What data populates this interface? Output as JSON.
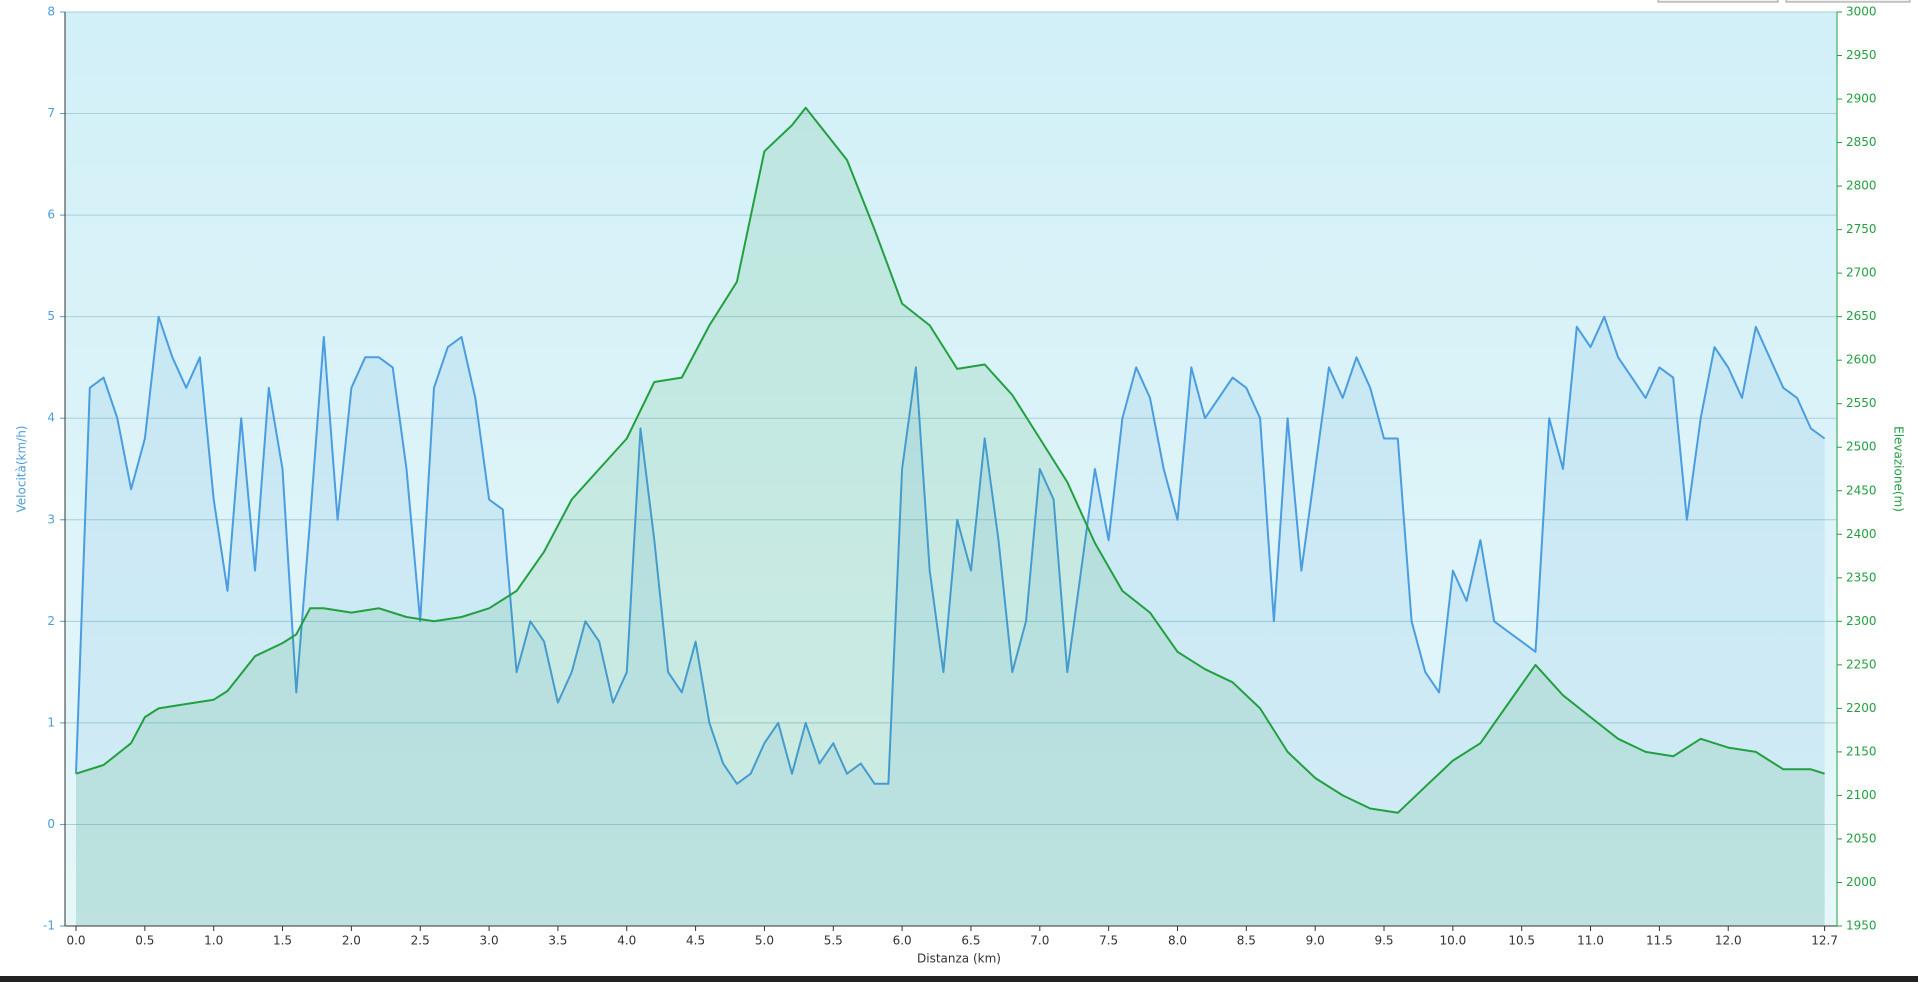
{
  "chart_data": {
    "type": "line",
    "xlabel": "Distanza  (km)",
    "ylabel": "Velocità(km/h)",
    "y2label": "Elevazione(m)",
    "xlim": [
      -0.08,
      12.79
    ],
    "xticks": [
      {
        "value": 0,
        "label": "0.0"
      },
      0.5,
      {
        "value": 1,
        "label": "1.0"
      },
      1.5,
      {
        "value": 2,
        "label": "2.0"
      },
      2.5,
      {
        "value": 3,
        "label": "3.0"
      },
      3.5,
      {
        "value": 4,
        "label": "4.0"
      },
      4.5,
      {
        "value": 5,
        "label": "5.0"
      },
      5.5,
      {
        "value": 6,
        "label": "6.0"
      },
      6.5,
      {
        "value": 7,
        "label": "7.0"
      },
      7.5,
      {
        "value": 8,
        "label": "8.0"
      },
      8.5,
      {
        "value": 9,
        "label": "9.0"
      },
      9.5,
      {
        "value": 10,
        "label": "10.0"
      },
      10.5,
      {
        "value": 11,
        "label": "11.0"
      },
      11.5,
      {
        "value": 12,
        "label": "12.0"
      },
      12.7
    ],
    "ylim": [
      -1,
      8
    ],
    "yticks": [
      -1,
      0,
      1,
      2,
      3,
      4,
      5,
      6,
      7,
      8
    ],
    "y2lim": [
      1950,
      3000
    ],
    "y2ticks": [
      1950,
      2000,
      2050,
      2100,
      2150,
      2200,
      2250,
      2300,
      2350,
      2400,
      2450,
      2500,
      2550,
      2600,
      2650,
      2700,
      2750,
      2800,
      2850,
      2900,
      2950,
      3000
    ],
    "grid": true,
    "series": [
      {
        "name": "Velocità",
        "color": "#4a9de0",
        "axis": "y",
        "x": [
          0.0,
          0.1,
          0.2,
          0.3,
          0.4,
          0.5,
          0.6,
          0.7,
          0.8,
          0.9,
          1.0,
          1.1,
          1.2,
          1.3,
          1.4,
          1.5,
          1.6,
          1.7,
          1.8,
          1.9,
          2.0,
          2.1,
          2.2,
          2.3,
          2.4,
          2.5,
          2.6,
          2.7,
          2.8,
          2.9,
          3.0,
          3.1,
          3.2,
          3.3,
          3.4,
          3.5,
          3.6,
          3.7,
          3.8,
          3.9,
          4.0,
          4.1,
          4.2,
          4.3,
          4.4,
          4.5,
          4.6,
          4.7,
          4.8,
          4.9,
          5.0,
          5.1,
          5.2,
          5.3,
          5.4,
          5.5,
          5.6,
          5.7,
          5.8,
          5.9,
          6.0,
          6.1,
          6.2,
          6.3,
          6.4,
          6.5,
          6.6,
          6.7,
          6.8,
          6.9,
          7.0,
          7.1,
          7.2,
          7.3,
          7.4,
          7.5,
          7.6,
          7.7,
          7.8,
          7.9,
          8.0,
          8.1,
          8.2,
          8.3,
          8.4,
          8.5,
          8.6,
          8.7,
          8.8,
          8.9,
          9.0,
          9.1,
          9.2,
          9.3,
          9.4,
          9.5,
          9.6,
          9.7,
          9.8,
          9.9,
          10.0,
          10.1,
          10.2,
          10.3,
          10.4,
          10.5,
          10.6,
          10.7,
          10.8,
          10.9,
          11.0,
          11.1,
          11.2,
          11.3,
          11.4,
          11.5,
          11.6,
          11.7,
          11.8,
          11.9,
          12.0,
          12.1,
          12.2,
          12.3,
          12.4,
          12.5,
          12.6,
          12.7
        ],
        "values": [
          0.5,
          4.3,
          4.4,
          4.0,
          3.3,
          3.8,
          5.0,
          4.6,
          4.3,
          4.6,
          3.2,
          2.3,
          4.0,
          2.5,
          4.3,
          3.5,
          1.3,
          3.0,
          4.8,
          3.0,
          4.3,
          4.6,
          4.6,
          4.5,
          3.5,
          2.0,
          4.3,
          4.7,
          4.8,
          4.2,
          3.2,
          3.1,
          1.5,
          2.0,
          1.8,
          1.2,
          1.5,
          2.0,
          1.8,
          1.2,
          1.5,
          3.9,
          2.8,
          1.5,
          1.3,
          1.8,
          1.0,
          0.6,
          0.4,
          0.5,
          0.8,
          1.0,
          0.5,
          1.0,
          0.6,
          0.8,
          0.5,
          0.6,
          0.4,
          0.4,
          3.5,
          4.5,
          2.5,
          1.5,
          3.0,
          2.5,
          3.8,
          2.8,
          1.5,
          2.0,
          3.5,
          3.2,
          1.5,
          2.5,
          3.5,
          2.8,
          4.0,
          4.5,
          4.2,
          3.5,
          3.0,
          4.5,
          4.0,
          4.2,
          4.4,
          4.3,
          4.0,
          2.0,
          4.0,
          2.5,
          3.5,
          4.5,
          4.2,
          4.6,
          4.3,
          3.8,
          3.8,
          2.0,
          1.5,
          1.3,
          2.5,
          2.2,
          2.8,
          2.0,
          1.9,
          1.8,
          1.7,
          4.0,
          3.5,
          4.9,
          4.7,
          5.0,
          4.6,
          4.4,
          4.2,
          4.5,
          4.4,
          3.0,
          4.0,
          4.7,
          4.5,
          4.2,
          4.9,
          4.6,
          4.3,
          4.2,
          3.9,
          3.8
        ]
      },
      {
        "name": "Elevazione",
        "color": "#22a040",
        "axis": "y2",
        "x": [
          0.0,
          0.2,
          0.4,
          0.5,
          0.6,
          0.8,
          1.0,
          1.1,
          1.3,
          1.5,
          1.6,
          1.7,
          1.8,
          2.0,
          2.2,
          2.4,
          2.6,
          2.8,
          3.0,
          3.2,
          3.4,
          3.6,
          3.8,
          4.0,
          4.2,
          4.4,
          4.6,
          4.8,
          5.0,
          5.2,
          5.3,
          5.4,
          5.6,
          5.8,
          6.0,
          6.2,
          6.4,
          6.6,
          6.8,
          7.0,
          7.2,
          7.4,
          7.6,
          7.8,
          8.0,
          8.2,
          8.4,
          8.6,
          8.8,
          9.0,
          9.2,
          9.4,
          9.6,
          9.8,
          10.0,
          10.2,
          10.4,
          10.6,
          10.8,
          11.0,
          11.2,
          11.4,
          11.6,
          11.8,
          12.0,
          12.2,
          12.4,
          12.6,
          12.7
        ],
        "values": [
          2125,
          2135,
          2160,
          2190,
          2200,
          2205,
          2210,
          2220,
          2260,
          2275,
          2285,
          2315,
          2315,
          2310,
          2315,
          2305,
          2300,
          2305,
          2315,
          2335,
          2380,
          2440,
          2475,
          2510,
          2575,
          2580,
          2640,
          2690,
          2840,
          2870,
          2890,
          2870,
          2830,
          2750,
          2665,
          2640,
          2590,
          2595,
          2560,
          2510,
          2460,
          2390,
          2335,
          2310,
          2265,
          2245,
          2230,
          2200,
          2150,
          2120,
          2100,
          2085,
          2080,
          2110,
          2140,
          2160,
          2205,
          2250,
          2215,
          2190,
          2165,
          2150,
          2145,
          2165,
          2155,
          2150,
          2130,
          2130,
          2125
        ]
      }
    ]
  }
}
